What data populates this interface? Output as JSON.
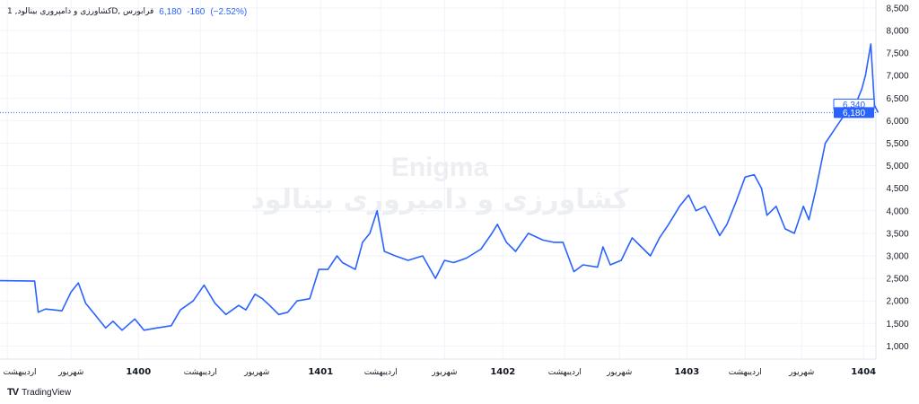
{
  "legend": {
    "symbol": "کشاورزی و دامپروری بینالود, 1D, فرابورس",
    "price": "6,180",
    "change": "-160",
    "change_pct": "(−2.52%)"
  },
  "watermark": {
    "line1": "Enigma",
    "line2": "کشاورزی و دامپروری بینالود"
  },
  "branding": {
    "name": "TradingView",
    "logo": "TV"
  },
  "colors": {
    "line": "#2962ff",
    "grid": "#f0f3fa",
    "text": "#131722",
    "watermark": "#eceef2"
  },
  "chart_data": {
    "type": "line",
    "title": "کشاورزی و دامپروری بینالود, 1D, فرابورس",
    "xlabel": "",
    "ylabel": "",
    "xlim": [
      1399.24,
      1404.05
    ],
    "ylim": [
      750,
      8600
    ],
    "grid": true,
    "y_ticks": [
      {
        "v": 1000,
        "label": "1,000"
      },
      {
        "v": 1500,
        "label": "1,500"
      },
      {
        "v": 2000,
        "label": "2,000"
      },
      {
        "v": 2500,
        "label": "2,500"
      },
      {
        "v": 3000,
        "label": "3,000"
      },
      {
        "v": 3500,
        "label": "3,500"
      },
      {
        "v": 4000,
        "label": "4,000"
      },
      {
        "v": 4500,
        "label": "4,500"
      },
      {
        "v": 5000,
        "label": "5,000"
      },
      {
        "v": 5500,
        "label": "5,500"
      },
      {
        "v": 6000,
        "label": "6,000"
      },
      {
        "v": 6500,
        "label": "6,500"
      },
      {
        "v": 7000,
        "label": "7,000"
      },
      {
        "v": 7500,
        "label": "7,500"
      },
      {
        "v": 8000,
        "label": "8,000"
      },
      {
        "v": 8500,
        "label": "8,500"
      }
    ],
    "x_ticks": [
      {
        "t": 1399.28,
        "label": "اردیبهشت"
      },
      {
        "t": 1399.63,
        "label": "شهریور"
      },
      {
        "t": 1400.0,
        "label": "1400"
      },
      {
        "t": 1400.34,
        "label": "اردیبهشت"
      },
      {
        "t": 1400.65,
        "label": "شهریور"
      },
      {
        "t": 1401.0,
        "label": "1401"
      },
      {
        "t": 1401.33,
        "label": "اردیبهشت"
      },
      {
        "t": 1401.68,
        "label": "شهریور"
      },
      {
        "t": 1402.0,
        "label": "1402"
      },
      {
        "t": 1402.34,
        "label": "اردیبهشت"
      },
      {
        "t": 1402.64,
        "label": "شهریور"
      },
      {
        "t": 1403.01,
        "label": "1403"
      },
      {
        "t": 1403.33,
        "label": "اردیبهشت"
      },
      {
        "t": 1403.64,
        "label": "شهریور"
      },
      {
        "t": 1403.98,
        "label": "1404"
      }
    ],
    "last_price": {
      "value": 6180,
      "label": "6,180"
    },
    "prev_close": {
      "value": 6340,
      "label": "6,340"
    },
    "series": [
      {
        "name": "close",
        "points": [
          [
            1399.24,
            2450
          ],
          [
            1399.43,
            2440
          ],
          [
            1399.45,
            1750
          ],
          [
            1399.49,
            1820
          ],
          [
            1399.58,
            1780
          ],
          [
            1399.63,
            2200
          ],
          [
            1399.67,
            2400
          ],
          [
            1399.71,
            1950
          ],
          [
            1399.76,
            1700
          ],
          [
            1399.82,
            1400
          ],
          [
            1399.86,
            1550
          ],
          [
            1399.91,
            1350
          ],
          [
            1399.98,
            1600
          ],
          [
            1400.03,
            1350
          ],
          [
            1400.1,
            1400
          ],
          [
            1400.18,
            1450
          ],
          [
            1400.23,
            1800
          ],
          [
            1400.3,
            2000
          ],
          [
            1400.36,
            2350
          ],
          [
            1400.42,
            1950
          ],
          [
            1400.48,
            1700
          ],
          [
            1400.55,
            1900
          ],
          [
            1400.59,
            1800
          ],
          [
            1400.64,
            2150
          ],
          [
            1400.68,
            2050
          ],
          [
            1400.72,
            1900
          ],
          [
            1400.77,
            1700
          ],
          [
            1400.82,
            1750
          ],
          [
            1400.87,
            2000
          ],
          [
            1400.94,
            2050
          ],
          [
            1400.99,
            2700
          ],
          [
            1401.04,
            2700
          ],
          [
            1401.09,
            3000
          ],
          [
            1401.12,
            2850
          ],
          [
            1401.19,
            2700
          ],
          [
            1401.23,
            3300
          ],
          [
            1401.27,
            3500
          ],
          [
            1401.31,
            4000
          ],
          [
            1401.35,
            3100
          ],
          [
            1401.41,
            3000
          ],
          [
            1401.48,
            2900
          ],
          [
            1401.56,
            3000
          ],
          [
            1401.63,
            2500
          ],
          [
            1401.68,
            2900
          ],
          [
            1401.73,
            2850
          ],
          [
            1401.8,
            2950
          ],
          [
            1401.88,
            3150
          ],
          [
            1401.94,
            3500
          ],
          [
            1401.97,
            3700
          ],
          [
            1402.02,
            3300
          ],
          [
            1402.07,
            3100
          ],
          [
            1402.14,
            3500
          ],
          [
            1402.22,
            3350
          ],
          [
            1402.28,
            3300
          ],
          [
            1402.33,
            3300
          ],
          [
            1402.39,
            2650
          ],
          [
            1402.44,
            2800
          ],
          [
            1402.52,
            2750
          ],
          [
            1402.55,
            3200
          ],
          [
            1402.59,
            2800
          ],
          [
            1402.65,
            2900
          ],
          [
            1402.71,
            3400
          ],
          [
            1402.76,
            3200
          ],
          [
            1402.81,
            3000
          ],
          [
            1402.86,
            3400
          ],
          [
            1402.91,
            3700
          ],
          [
            1402.97,
            4100
          ],
          [
            1403.02,
            4350
          ],
          [
            1403.06,
            4000
          ],
          [
            1403.11,
            4100
          ],
          [
            1403.16,
            3700
          ],
          [
            1403.19,
            3450
          ],
          [
            1403.23,
            3700
          ],
          [
            1403.28,
            4200
          ],
          [
            1403.33,
            4750
          ],
          [
            1403.38,
            4800
          ],
          [
            1403.42,
            4500
          ],
          [
            1403.45,
            3900
          ],
          [
            1403.5,
            4100
          ],
          [
            1403.55,
            3600
          ],
          [
            1403.6,
            3500
          ],
          [
            1403.65,
            4100
          ],
          [
            1403.68,
            3800
          ],
          [
            1403.72,
            4500
          ],
          [
            1403.77,
            5500
          ],
          [
            1403.82,
            5800
          ],
          [
            1403.87,
            6100
          ],
          [
            1403.92,
            6200
          ],
          [
            1403.97,
            6700
          ],
          [
            1403.99,
            7000
          ],
          [
            1404.02,
            7700
          ],
          [
            1404.04,
            6340
          ],
          [
            1404.06,
            6180
          ]
        ]
      }
    ]
  }
}
